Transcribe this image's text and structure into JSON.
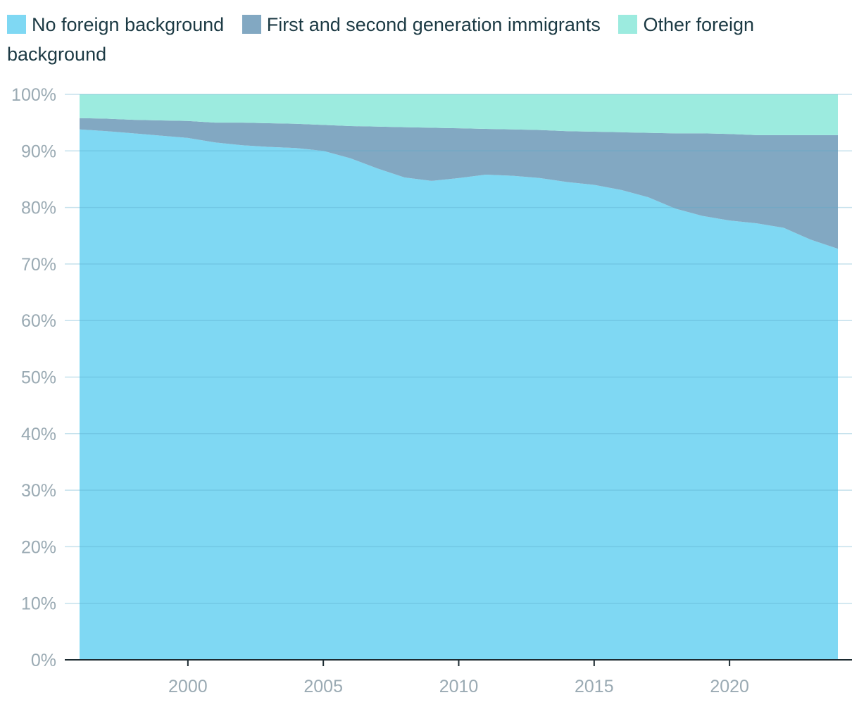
{
  "legend": [
    {
      "label": "No foreign background",
      "color": "#7fd8f3"
    },
    {
      "label": "First and second generation immigrants",
      "color": "#82a8c2"
    },
    {
      "label": "Other foreign background",
      "color": "#9cebdf"
    }
  ],
  "chart_data": {
    "type": "area",
    "stacked": true,
    "normalized": true,
    "x": [
      1996,
      1997,
      1998,
      1999,
      2000,
      2001,
      2002,
      2003,
      2004,
      2005,
      2006,
      2007,
      2008,
      2009,
      2010,
      2011,
      2012,
      2013,
      2014,
      2015,
      2016,
      2017,
      2018,
      2019,
      2020,
      2021,
      2022,
      2023,
      2024
    ],
    "series": [
      {
        "name": "No foreign background",
        "color": "#7fd8f3",
        "values": [
          93.8,
          93.5,
          93.1,
          92.7,
          92.3,
          91.5,
          91.0,
          90.7,
          90.5,
          90.0,
          88.7,
          86.9,
          85.3,
          84.7,
          85.2,
          85.8,
          85.6,
          85.2,
          84.5,
          84.0,
          83.1,
          81.8,
          79.8,
          78.5,
          77.7,
          77.2,
          76.4,
          74.3,
          72.7
        ]
      },
      {
        "name": "First and second generation immigrants",
        "color": "#82a8c2",
        "values": [
          2.0,
          2.2,
          2.4,
          2.7,
          3.0,
          3.5,
          4.0,
          4.2,
          4.3,
          4.6,
          5.7,
          7.4,
          8.9,
          9.4,
          8.8,
          8.1,
          8.2,
          8.5,
          9.0,
          9.4,
          10.2,
          11.4,
          13.3,
          14.6,
          15.3,
          15.6,
          16.4,
          18.5,
          20.1
        ]
      },
      {
        "name": "Other foreign background",
        "color": "#9cebdf",
        "values": [
          4.2,
          4.3,
          4.5,
          4.6,
          4.7,
          5.0,
          5.0,
          5.1,
          5.2,
          5.4,
          5.6,
          5.7,
          5.8,
          5.9,
          6.0,
          6.1,
          6.2,
          6.3,
          6.5,
          6.6,
          6.7,
          6.8,
          6.9,
          6.9,
          7.0,
          7.2,
          7.2,
          7.2,
          7.2
        ]
      }
    ],
    "x_ticks": [
      2000,
      2005,
      2010,
      2015,
      2020
    ],
    "y_ticks": [
      0,
      10,
      20,
      30,
      40,
      50,
      60,
      70,
      80,
      90,
      100
    ],
    "y_tick_suffix": "%",
    "xlim": [
      1996,
      2024
    ],
    "ylim": [
      0,
      100
    ],
    "grid": true,
    "legend_position": "top",
    "title": "",
    "xlabel": "",
    "ylabel": ""
  }
}
